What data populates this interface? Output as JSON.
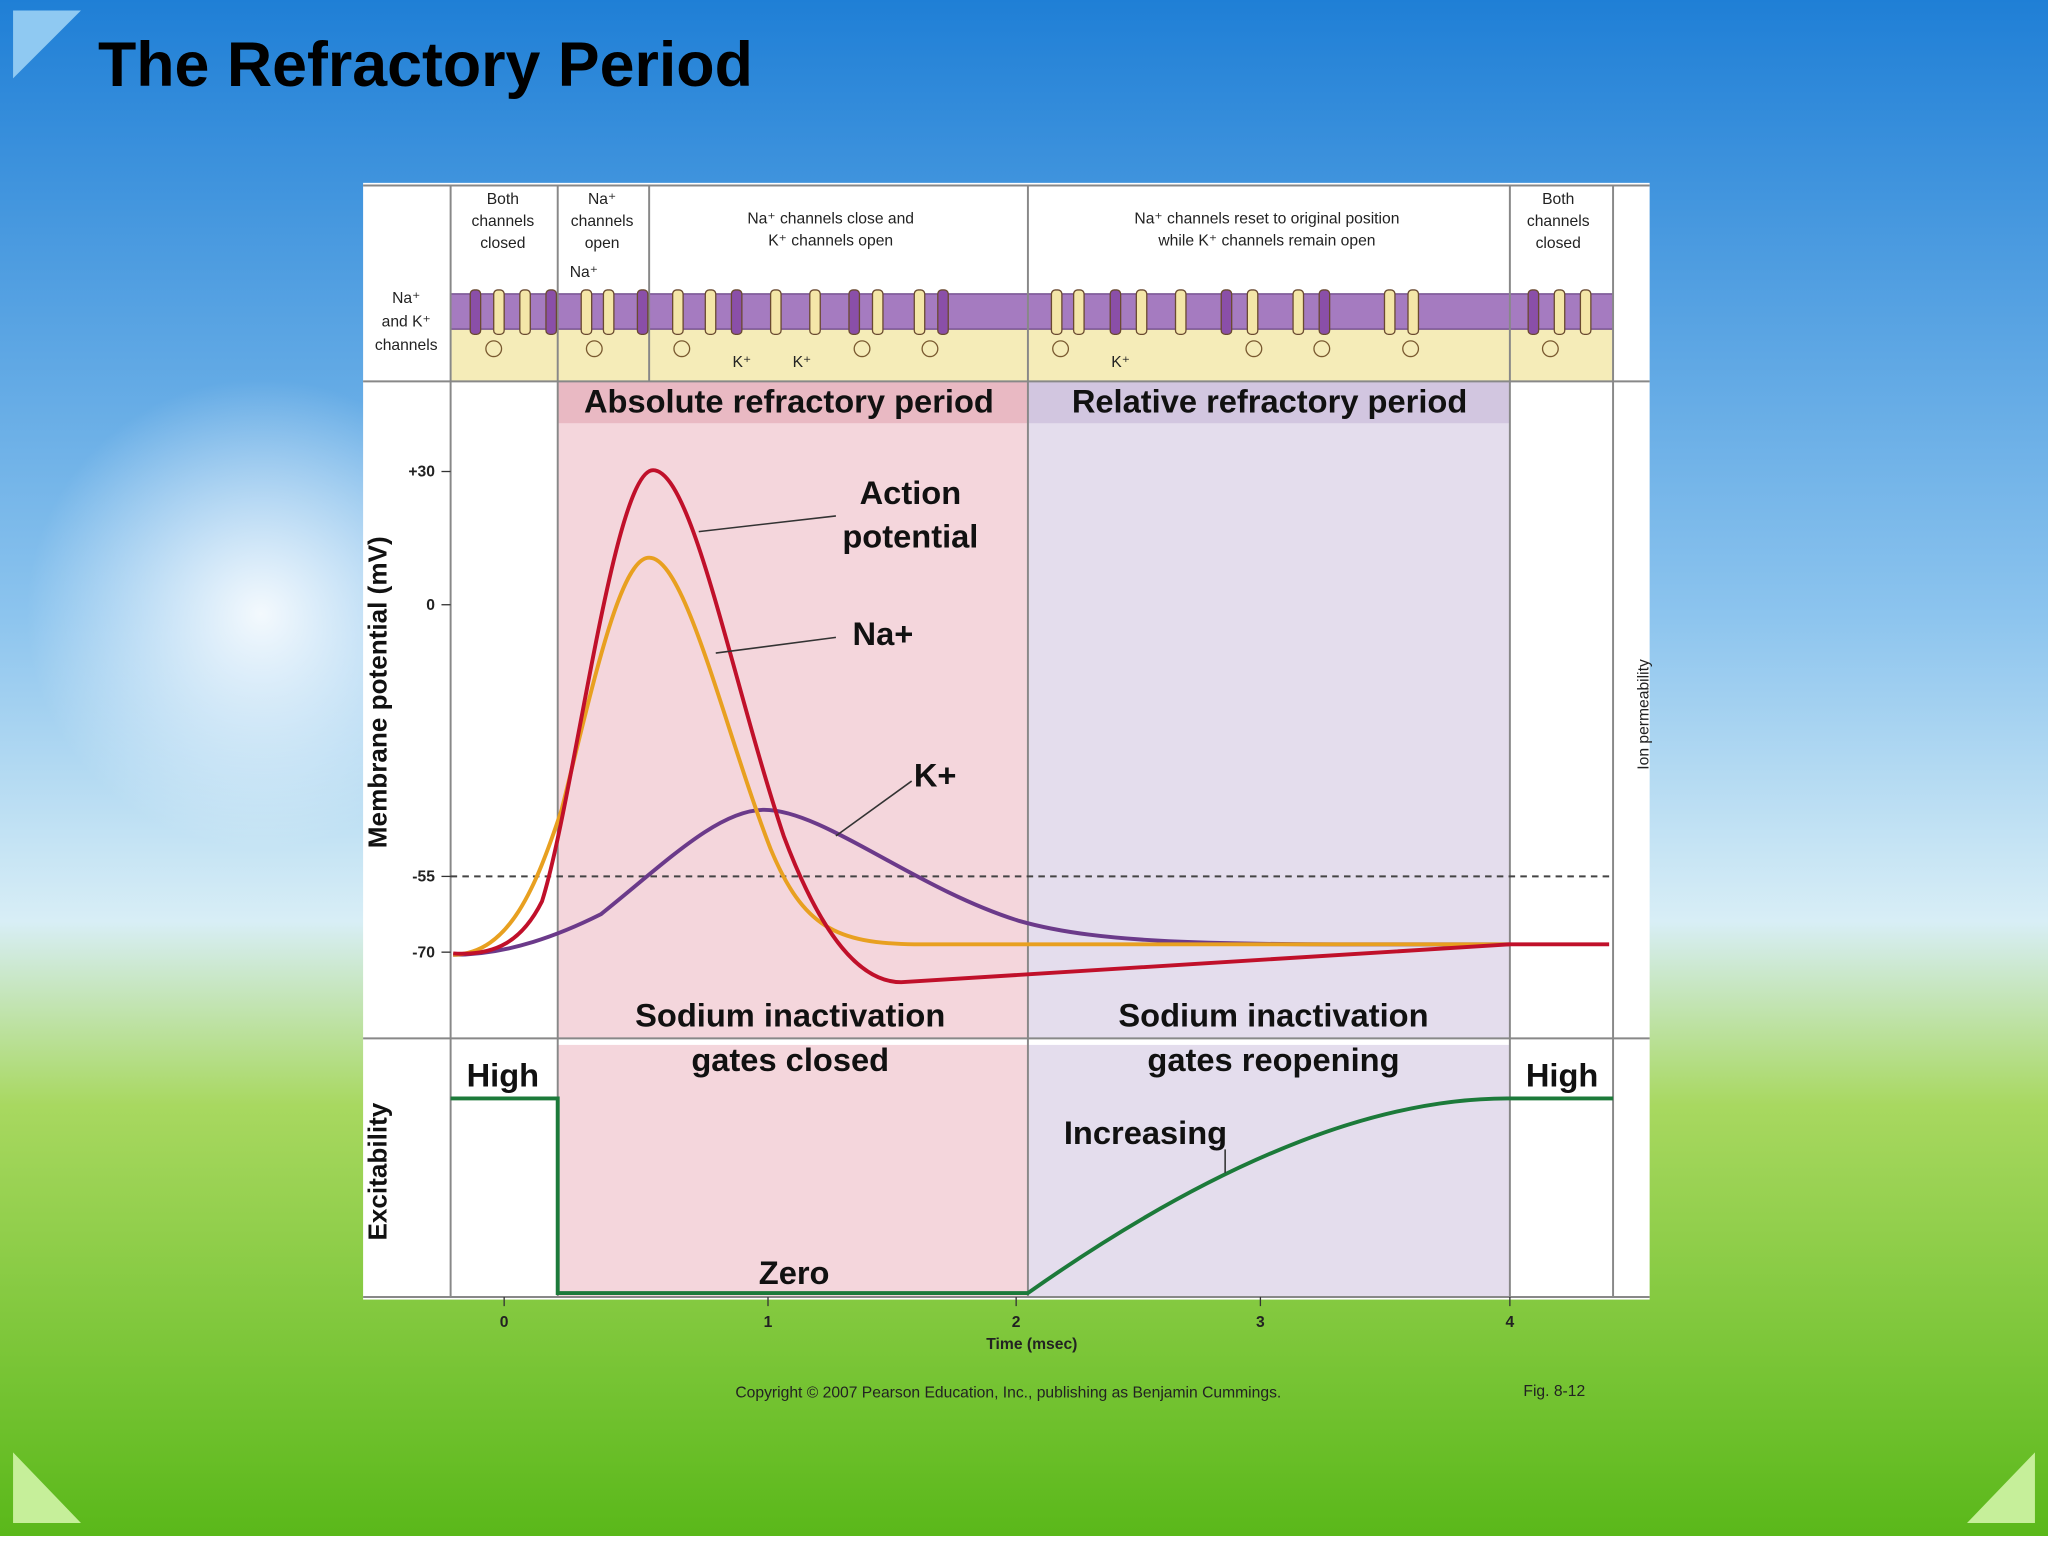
{
  "title": "The Refractory Period",
  "figure": {
    "row_label": [
      "Na⁺",
      "and K⁺",
      "channels"
    ],
    "channel_states": [
      {
        "lines": [
          "Both",
          "channels",
          "closed"
        ]
      },
      {
        "lines": [
          "Na⁺",
          "channels",
          "open"
        ]
      },
      {
        "lines": [
          "Na⁺ channels close and",
          "K⁺ channels open"
        ]
      },
      {
        "lines": [
          "Na⁺ channels reset to original position",
          "while K⁺ channels remain open"
        ]
      },
      {
        "lines": [
          "Both",
          "channels",
          "closed"
        ]
      }
    ],
    "ion_labels": [
      "Na⁺",
      "K⁺",
      "K⁺",
      "K⁺"
    ],
    "periods": [
      "Absolute refractory period",
      "Relative refractory period"
    ],
    "y_axis_label": "Membrane potential (mV)",
    "y_ticks": [
      "+30",
      "0",
      "-55",
      "-70"
    ],
    "right_axis_label": "Ion permeability",
    "curve_labels": {
      "action_potential": [
        "Action",
        "potential"
      ],
      "sodium": "Na+",
      "potassium": "K+"
    },
    "gates": [
      [
        "Sodium inactivation",
        "gates closed"
      ],
      [
        "Sodium inactivation",
        "gates reopening"
      ]
    ],
    "excitability_label": "Excitability",
    "excitability_states": [
      "High",
      "Zero",
      "Increasing",
      "High"
    ],
    "x_ticks": [
      "0",
      "1",
      "2",
      "3",
      "4"
    ],
    "x_axis_label": "Time (msec)",
    "copyright": "Copyright © 2007 Pearson Education, Inc., publishing as Benjamin Cummings.",
    "figure_number": "Fig. 8-12"
  }
}
